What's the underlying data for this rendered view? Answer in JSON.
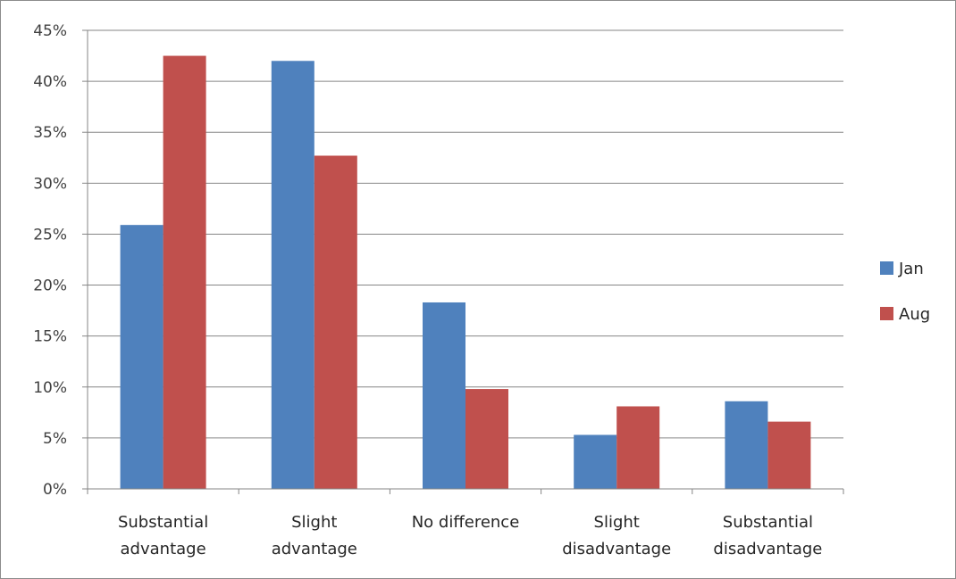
{
  "chart_data": {
    "type": "bar",
    "title": "",
    "xlabel": "",
    "ylabel": "",
    "categories": [
      [
        "Substantial",
        "advantage"
      ],
      [
        "Slight",
        "advantage"
      ],
      [
        "No difference"
      ],
      [
        "Slight",
        "disadvantage"
      ],
      [
        "Substantial",
        "disadvantage"
      ]
    ],
    "series": [
      {
        "name": "Jan",
        "color": "#4f81bd",
        "values": [
          25.9,
          42.0,
          18.3,
          5.3,
          8.6
        ]
      },
      {
        "name": "Aug",
        "color": "#c0504d",
        "values": [
          42.5,
          32.7,
          9.8,
          8.1,
          6.6
        ]
      }
    ],
    "ylim": [
      0,
      45
    ],
    "yticks": [
      0,
      5,
      10,
      15,
      20,
      25,
      30,
      35,
      40,
      45
    ],
    "ytick_suffix": "%",
    "grid": true,
    "legend_position": "right",
    "gridline_color": "#868686",
    "axis_color": "#868686"
  }
}
